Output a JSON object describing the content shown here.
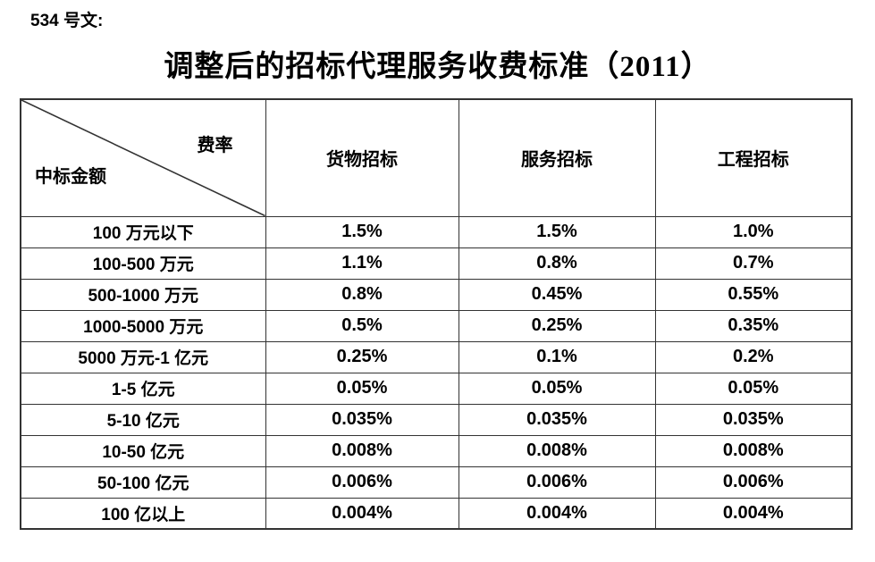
{
  "page": {
    "doc_number": "534 号文:",
    "title": "调整后的招标代理服务收费标准（2011）"
  },
  "table": {
    "corner": {
      "top_right_label": "费率",
      "bottom_left_label": "中标金额"
    },
    "columns": [
      "货物招标",
      "服务招标",
      "工程招标"
    ],
    "rows": [
      {
        "label": "100 万元以下",
        "values": [
          "1.5%",
          "1.5%",
          "1.0%"
        ]
      },
      {
        "label": "100-500 万元",
        "values": [
          "1.1%",
          "0.8%",
          "0.7%"
        ]
      },
      {
        "label": "500-1000 万元",
        "values": [
          "0.8%",
          "0.45%",
          "0.55%"
        ]
      },
      {
        "label": "1000-5000 万元",
        "values": [
          "0.5%",
          "0.25%",
          "0.35%"
        ]
      },
      {
        "label": "5000 万元-1 亿元",
        "values": [
          "0.25%",
          "0.1%",
          "0.2%"
        ]
      },
      {
        "label": "1-5 亿元",
        "values": [
          "0.05%",
          "0.05%",
          "0.05%"
        ]
      },
      {
        "label": "5-10 亿元",
        "values": [
          "0.035%",
          "0.035%",
          "0.035%"
        ]
      },
      {
        "label": "10-50 亿元",
        "values": [
          "0.008%",
          "0.008%",
          "0.008%"
        ]
      },
      {
        "label": "50-100 亿元",
        "values": [
          "0.006%",
          "0.006%",
          "0.006%"
        ]
      },
      {
        "label": "100 亿以上",
        "values": [
          "0.004%",
          "0.004%",
          "0.004%"
        ]
      }
    ]
  },
  "colors": {
    "text": "#000000",
    "border": "#333333",
    "background": "#ffffff"
  }
}
